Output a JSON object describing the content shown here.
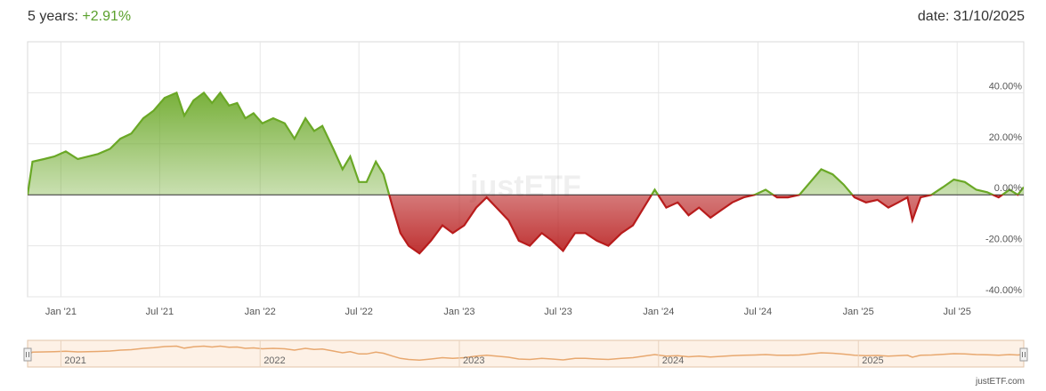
{
  "header": {
    "period_label": "5 years:",
    "performance": "+2.91%",
    "date_label": "date: 31/10/2025"
  },
  "watermark": "justETF",
  "credit": "justETF.com",
  "colors": {
    "positive": "#6aa826",
    "negative": "#b81c1c",
    "navigator_line": "#e8a86f",
    "navigator_fill": "#fdf1e6",
    "grid": "#e6e6e6"
  },
  "chart_data": {
    "type": "area",
    "title": "",
    "xlabel": "",
    "ylabel": "",
    "ylim": [
      -40,
      60
    ],
    "y_ticks": [
      -40,
      -20,
      0,
      20,
      40
    ],
    "y_tick_labels": [
      "-40.00%",
      "-20.00%",
      "0.00%",
      "20.00%",
      "40.00%"
    ],
    "x_range": [
      "2020-11-01",
      "2025-10-31"
    ],
    "x_ticks": [
      {
        "date": "2021-01-01",
        "label": "Jan '21"
      },
      {
        "date": "2021-07-01",
        "label": "Jul '21"
      },
      {
        "date": "2022-01-01",
        "label": "Jan '22"
      },
      {
        "date": "2022-07-01",
        "label": "Jul '22"
      },
      {
        "date": "2023-01-01",
        "label": "Jan '23"
      },
      {
        "date": "2023-07-01",
        "label": "Jul '23"
      },
      {
        "date": "2024-01-01",
        "label": "Jan '24"
      },
      {
        "date": "2024-07-01",
        "label": "Jul '24"
      },
      {
        "date": "2025-01-01",
        "label": "Jan '25"
      },
      {
        "date": "2025-07-01",
        "label": "Jul '25"
      }
    ],
    "navigator_labels": [
      {
        "date": "2021-01-01",
        "label": "2021"
      },
      {
        "date": "2022-01-01",
        "label": "2022"
      },
      {
        "date": "2023-01-01",
        "label": "2023"
      },
      {
        "date": "2024-01-01",
        "label": "2024"
      },
      {
        "date": "2025-01-01",
        "label": "2025"
      }
    ],
    "series": [
      {
        "x": [
          "2020-11-01",
          "2020-11-10",
          "2020-12-01",
          "2020-12-20",
          "2021-01-10",
          "2021-02-01",
          "2021-02-20",
          "2021-03-10",
          "2021-04-01",
          "2021-04-20",
          "2021-05-10",
          "2021-06-01",
          "2021-06-20",
          "2021-07-10",
          "2021-08-01",
          "2021-08-15",
          "2021-09-01",
          "2021-09-20",
          "2021-10-05",
          "2021-10-20",
          "2021-11-05",
          "2021-11-20",
          "2021-12-05",
          "2021-12-20",
          "2022-01-05",
          "2022-01-25",
          "2022-02-15",
          "2022-03-05",
          "2022-03-25",
          "2022-04-10",
          "2022-04-25",
          "2022-05-15",
          "2022-06-01",
          "2022-06-15",
          "2022-07-01",
          "2022-07-15",
          "2022-08-01",
          "2022-08-15",
          "2022-09-01",
          "2022-09-15",
          "2022-09-30",
          "2022-10-20",
          "2022-11-10",
          "2022-12-01",
          "2022-12-20",
          "2023-01-10",
          "2023-02-01",
          "2023-02-20",
          "2023-03-10",
          "2023-04-01",
          "2023-04-20",
          "2023-05-10",
          "2023-06-01",
          "2023-06-20",
          "2023-07-10",
          "2023-08-01",
          "2023-08-20",
          "2023-09-10",
          "2023-10-01",
          "2023-10-25",
          "2023-11-15",
          "2023-12-05",
          "2023-12-25",
          "2024-01-15",
          "2024-02-05",
          "2024-02-25",
          "2024-03-15",
          "2024-04-05",
          "2024-04-25",
          "2024-05-15",
          "2024-06-05",
          "2024-06-25",
          "2024-07-15",
          "2024-08-05",
          "2024-08-25",
          "2024-09-15",
          "2024-10-05",
          "2024-10-25",
          "2024-11-15",
          "2024-12-05",
          "2024-12-25",
          "2025-01-15",
          "2025-02-05",
          "2025-02-25",
          "2025-03-15",
          "2025-04-01",
          "2025-04-10",
          "2025-04-25",
          "2025-05-15",
          "2025-06-05",
          "2025-06-25",
          "2025-07-15",
          "2025-08-05",
          "2025-08-25",
          "2025-09-15",
          "2025-10-05",
          "2025-10-20",
          "2025-10-31"
        ],
        "values": [
          0,
          13,
          14,
          15,
          17,
          14,
          15,
          16,
          18,
          22,
          24,
          30,
          33,
          38,
          40,
          31,
          37,
          40,
          36,
          40,
          35,
          36,
          30,
          32,
          28,
          30,
          28,
          22,
          30,
          25,
          27,
          18,
          10,
          15,
          5,
          5,
          13,
          8,
          -5,
          -15,
          -20,
          -23,
          -18,
          -12,
          -15,
          -12,
          -5,
          -1,
          -5,
          -10,
          -18,
          -20,
          -15,
          -18,
          -22,
          -15,
          -15,
          -18,
          -20,
          -15,
          -12,
          -5,
          2,
          -5,
          -3,
          -8,
          -5,
          -9,
          -6,
          -3,
          -1,
          0,
          2,
          -1,
          -1,
          0,
          5,
          10,
          8,
          4,
          -1,
          -3,
          -2,
          -5,
          -3,
          -1,
          -10,
          -1,
          0,
          3,
          6,
          5,
          2,
          1,
          -1,
          2,
          0,
          3
        ]
      }
    ]
  }
}
